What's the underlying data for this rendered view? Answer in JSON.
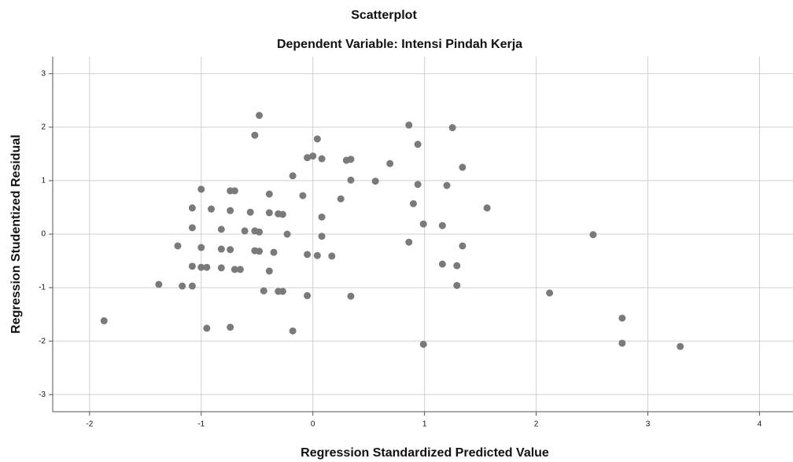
{
  "chart_data": {
    "type": "scatter",
    "title": "Scatterplot",
    "subtitle": "Dependent Variable: Intensi Pindah Kerja",
    "x_label": "Regression Standardized Predicted Value",
    "y_label": "Regression Studentized Residual",
    "color": "#7a7a7a",
    "grid": true,
    "xlim": [
      -2.33,
      4.3
    ],
    "ylim": [
      -3.32,
      3.32
    ],
    "xticks": [
      -2,
      -1,
      0,
      1,
      2,
      3,
      4
    ],
    "yticks": [
      -3,
      -2,
      -1,
      0,
      1,
      2,
      3
    ],
    "x": [
      -1.87,
      -1.38,
      -1.21,
      -1.17,
      -1.08,
      -1.08,
      -1.08,
      -1.08,
      -1.0,
      -1.0,
      -1.0,
      -0.95,
      -0.95,
      -0.91,
      -0.82,
      -0.82,
      -0.82,
      -0.74,
      -0.74,
      -0.74,
      -0.74,
      -0.7,
      -0.7,
      -0.65,
      -0.61,
      -0.56,
      -0.52,
      -0.52,
      -0.52,
      -0.48,
      -0.48,
      -0.48,
      -0.44,
      -0.39,
      -0.39,
      -0.39,
      -0.35,
      -0.31,
      -0.31,
      -0.27,
      -0.27,
      -0.23,
      -0.18,
      -0.18,
      -0.09,
      -0.05,
      -0.05,
      -0.05,
      0,
      0.04,
      0.04,
      0.08,
      0.08,
      0.08,
      0.17,
      0.25,
      0.3,
      0.34,
      0.34,
      0.34,
      0.56,
      0.69,
      0.86,
      0.86,
      0.9,
      0.94,
      0.94,
      0.99,
      0.99,
      1.16,
      1.16,
      1.2,
      1.25,
      1.29,
      1.29,
      1.34,
      1.34,
      1.56,
      2.12,
      2.51,
      2.77,
      2.77,
      3.29
    ],
    "values": [
      -1.62,
      -0.94,
      -0.22,
      -0.97,
      0.49,
      0.12,
      -0.6,
      -0.97,
      0.84,
      -0.25,
      -0.62,
      -0.62,
      -1.76,
      0.47,
      0.09,
      -0.28,
      -0.63,
      0.81,
      0.44,
      -0.29,
      -1.74,
      0.81,
      -0.66,
      -0.66,
      0.06,
      0.41,
      1.85,
      0.06,
      -0.31,
      2.22,
      0.04,
      -0.32,
      -1.06,
      0.75,
      0.4,
      -0.69,
      -0.34,
      0.38,
      -1.07,
      0.37,
      -1.07,
      0.0,
      1.09,
      -1.81,
      0.72,
      1.43,
      -0.38,
      -1.15,
      1.46,
      1.78,
      -0.4,
      1.41,
      0.32,
      -0.04,
      -0.41,
      0.66,
      1.38,
      1.4,
      1.01,
      -1.16,
      0.99,
      1.32,
      2.04,
      -0.15,
      0.57,
      1.68,
      0.93,
      0.19,
      -2.06,
      0.16,
      -0.56,
      0.91,
      1.99,
      -0.59,
      -0.96,
      1.25,
      -0.22,
      0.49,
      -1.1,
      -0.01,
      -1.57,
      -2.04,
      -2.1
    ]
  }
}
